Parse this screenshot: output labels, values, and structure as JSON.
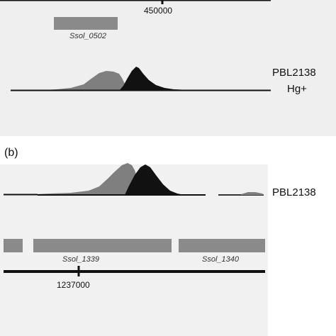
{
  "panel_a": {
    "tick_label": "450000",
    "gene": "Ssol_0502",
    "sample_line1": "PBL2138",
    "sample_line2": "Hg+"
  },
  "panel_b": {
    "panel_label": "(b)",
    "sample": "PBL2138",
    "genes": [
      "Ssol_1339",
      "Ssol_1340"
    ],
    "tick_label": "1237000"
  },
  "colors": {
    "panel_background": "#efefef",
    "track_gray": "#7f7f7f",
    "track_black": "#111111",
    "gene_bar": "#8a8a8a",
    "axis": "#111111"
  }
}
